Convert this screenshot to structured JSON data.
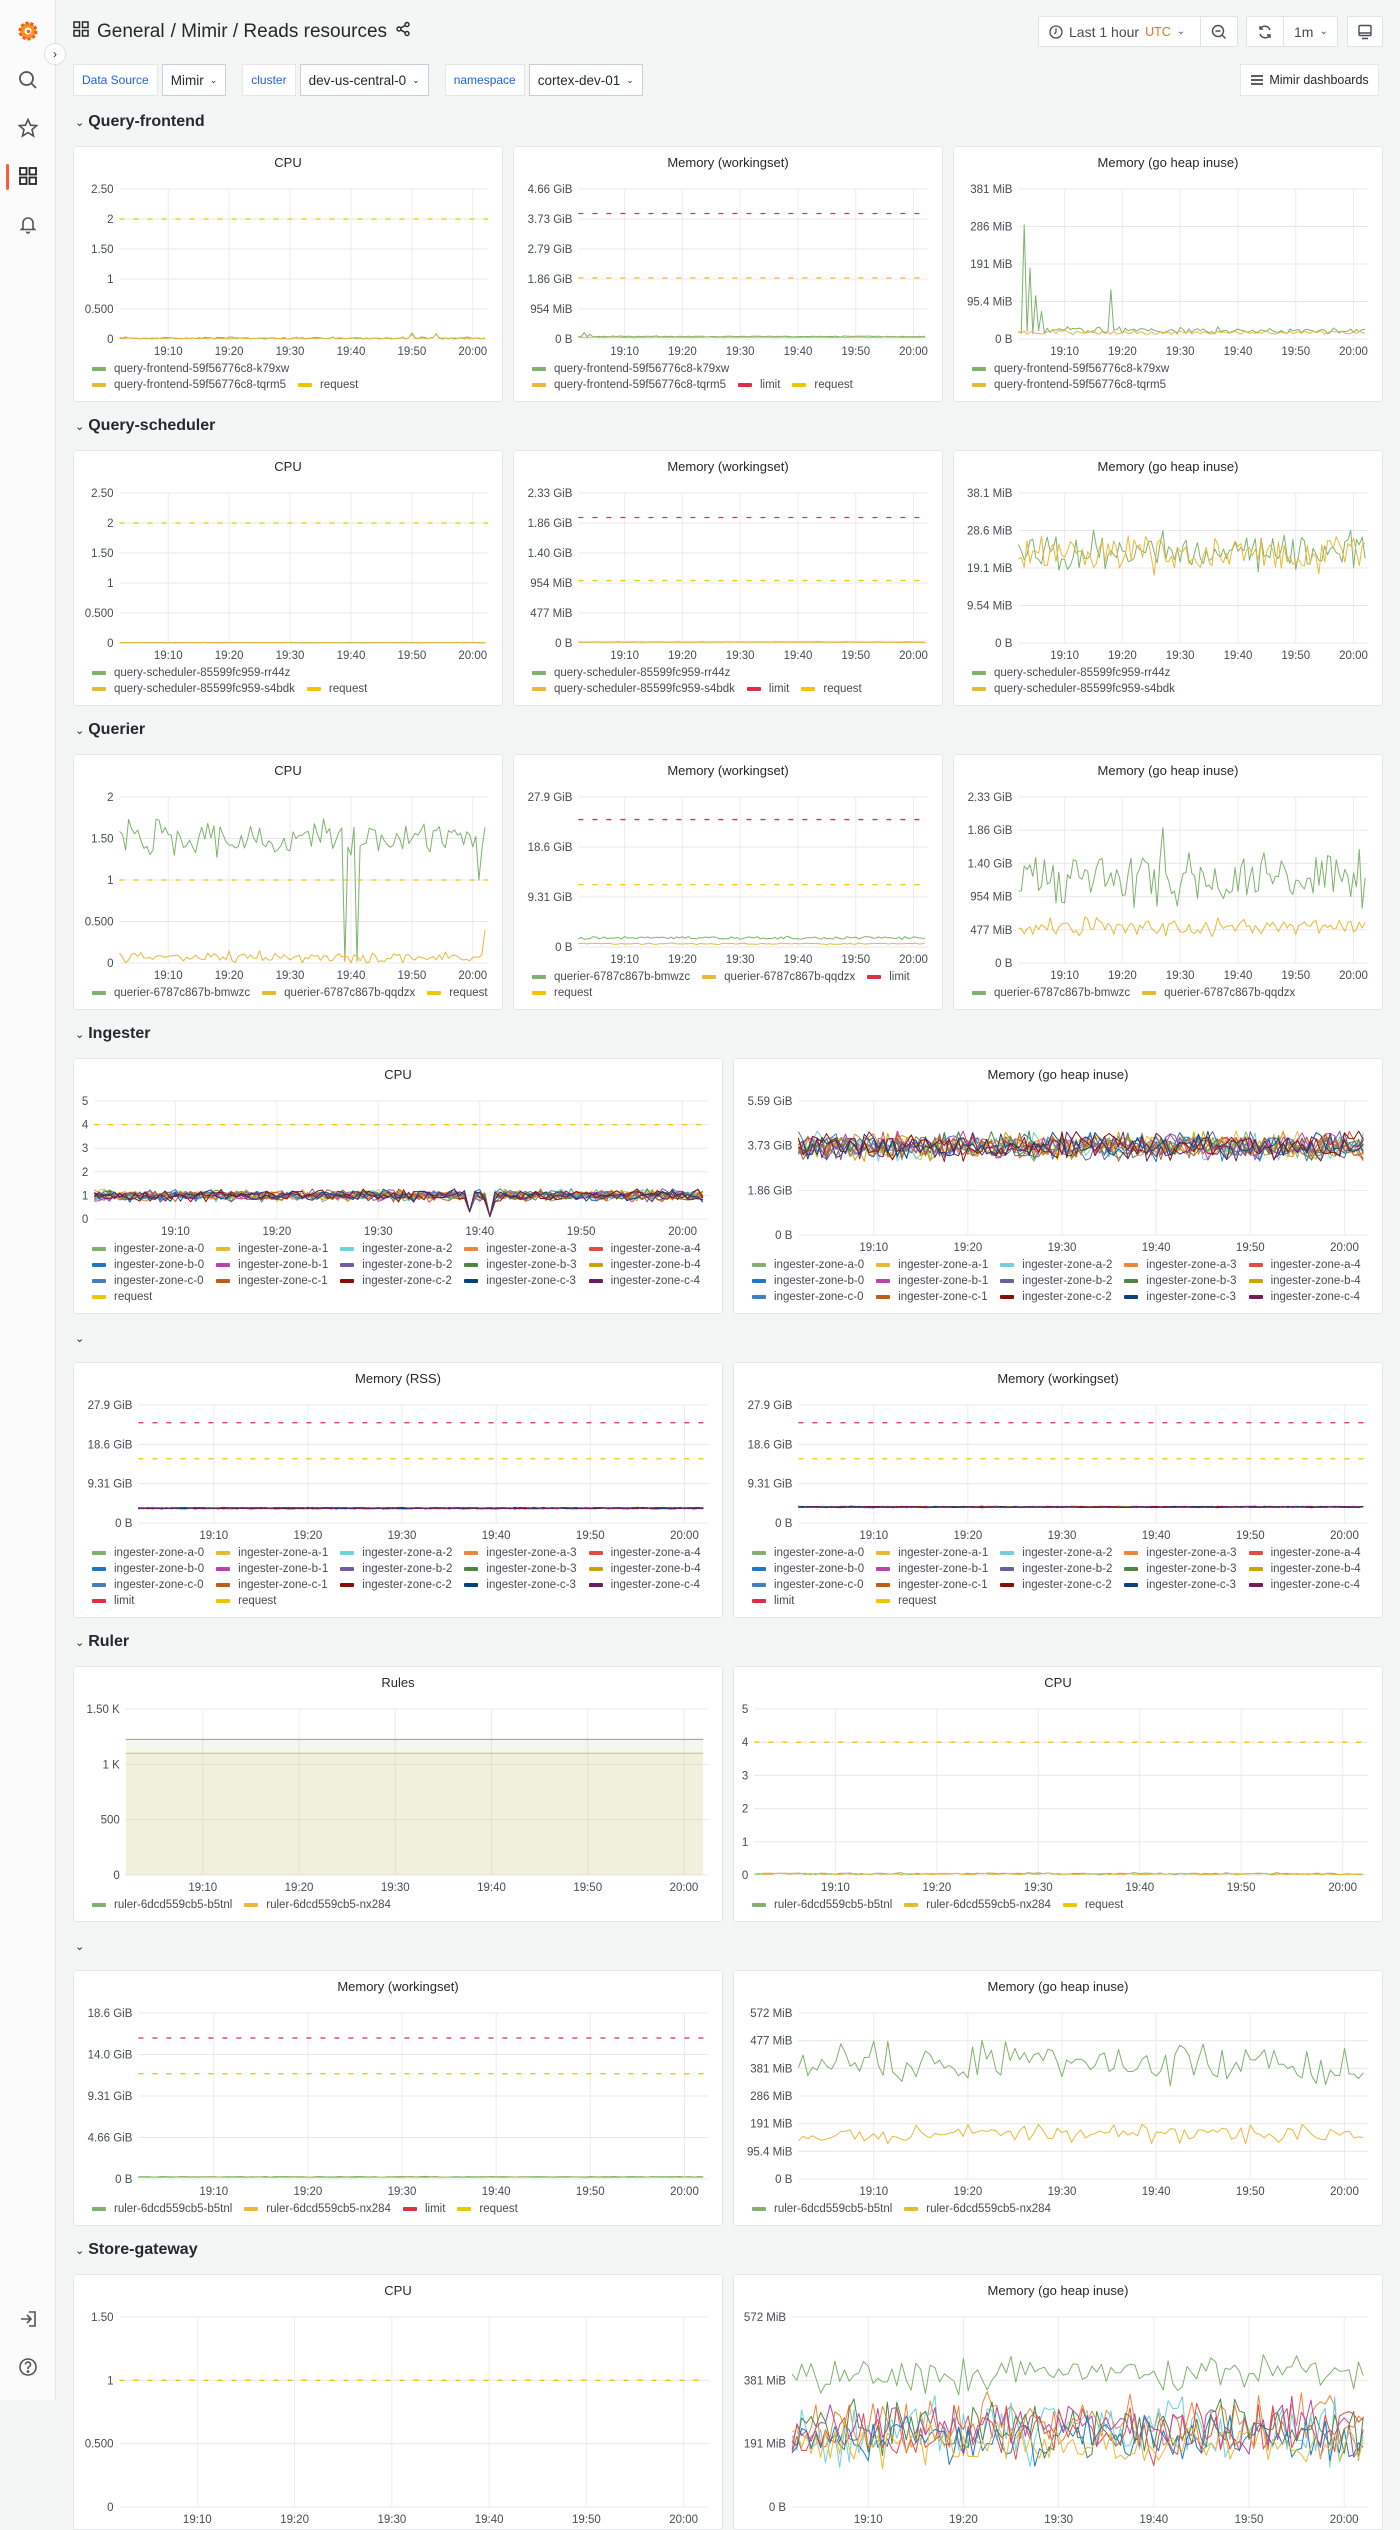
{
  "sidebar": {
    "top": [
      "grafana-logo",
      "search-icon",
      "star-icon",
      "dashboards-icon",
      "bell-icon"
    ],
    "bottom": [
      "sign-in-icon",
      "help-icon"
    ],
    "active": "dashboards-icon"
  },
  "header": {
    "breadcrumb_root": "General",
    "breadcrumb_path": "/ Mimir / Reads resources",
    "time_range": "Last 1 hour",
    "timezone": "UTC",
    "refresh_interval": "1m"
  },
  "variables": [
    {
      "label": "Data Source",
      "value": "Mimir"
    },
    {
      "label": "cluster",
      "value": "dev-us-central-0"
    },
    {
      "label": "namespace",
      "value": "cortex-dev-01"
    }
  ],
  "dashboards_link": "Mimir dashboards",
  "time_axis": {
    "start": "19:02",
    "end": "20:02",
    "ticks": [
      "19:10",
      "19:20",
      "19:30",
      "19:40",
      "19:50",
      "20:00"
    ]
  },
  "colors": {
    "limit": "#e02f44",
    "request": "#f5c400",
    "accent": "#ef6f1e",
    "link": "#1f62e0"
  },
  "sections": [
    {
      "title": "Query-frontend",
      "panels": [
        {
          "title": "CPU",
          "y_ticks": [
            "0",
            "0.500",
            "1",
            "1.50",
            "2",
            "2.50"
          ],
          "y_max": 2.5,
          "series": [
            {
              "name": "query-frontend-59f56776c8-k79xw",
              "color": "#7eb26d",
              "value": 0.015,
              "noise": 0.012,
              "spikes": [
                {
                  "t": "19:50",
                  "v": 0.1
                },
                {
                  "t": "19:54",
                  "v": 0.09
                }
              ]
            },
            {
              "name": "query-frontend-59f56776c8-tqrm5",
              "color": "#eab839",
              "value": 0.012,
              "noise": 0.01,
              "spikes": [
                {
                  "t": "19:50",
                  "v": 0.08
                },
                {
                  "t": "19:54",
                  "v": 0.08
                }
              ]
            }
          ],
          "thresholds": [
            {
              "name": "request",
              "color": "#f5c400",
              "value": 2
            }
          ]
        },
        {
          "title": "Memory (workingset)",
          "y_ticks": [
            "0 B",
            "954 MiB",
            "1.86 GiB",
            "2.79 GiB",
            "3.73 GiB",
            "4.66 GiB"
          ],
          "y_max": 4.66,
          "series": [
            {
              "name": "query-frontend-59f56776c8-k79xw",
              "color": "#7eb26d",
              "value": 0.08,
              "noise": 0.01,
              "spikes": [
                {
                  "t": "19:03",
                  "v": 0.2
                },
                {
                  "t": "19:04",
                  "v": 0.15
                }
              ]
            },
            {
              "name": "query-frontend-59f56776c8-tqrm5",
              "color": "#eab839",
              "value": 0.05,
              "noise": 0.005
            }
          ],
          "thresholds": [
            {
              "name": "limit",
              "color": "#e02f44",
              "value": 3.9
            },
            {
              "name": "request",
              "color": "#f5c400",
              "value": 1.9
            }
          ]
        },
        {
          "title": "Memory (go heap inuse)",
          "y_ticks": [
            "0 B",
            "95.4 MiB",
            "191 MiB",
            "286 MiB",
            "381 MiB"
          ],
          "y_max": 381,
          "series": [
            {
              "name": "query-frontend-59f56776c8-k79xw",
              "color": "#7eb26d",
              "value": 22,
              "noise": 6,
              "spikes": [
                {
                  "t": "19:03",
                  "v": 290
                },
                {
                  "t": "19:04",
                  "v": 180
                },
                {
                  "t": "19:05",
                  "v": 110
                },
                {
                  "t": "19:06",
                  "v": 70
                },
                {
                  "t": "19:18",
                  "v": 125
                }
              ]
            },
            {
              "name": "query-frontend-59f56776c8-tqrm5",
              "color": "#eab839",
              "value": 16,
              "noise": 4
            }
          ],
          "thresholds": []
        }
      ]
    },
    {
      "title": "Query-scheduler",
      "panels": [
        {
          "title": "CPU",
          "y_ticks": [
            "0",
            "0.500",
            "1",
            "1.50",
            "2",
            "2.50"
          ],
          "y_max": 2.5,
          "series": [
            {
              "name": "query-scheduler-85599fc959-rr44z",
              "color": "#7eb26d",
              "value": 0.006,
              "noise": 0.003
            },
            {
              "name": "query-scheduler-85599fc959-s4bdk",
              "color": "#eab839",
              "value": 0.005,
              "noise": 0.003
            }
          ],
          "thresholds": [
            {
              "name": "request",
              "color": "#f5c400",
              "value": 2
            }
          ]
        },
        {
          "title": "Memory (workingset)",
          "y_ticks": [
            "0 B",
            "477 MiB",
            "954 MiB",
            "1.40 GiB",
            "1.86 GiB",
            "2.33 GiB"
          ],
          "y_max": 2.33,
          "series": [
            {
              "name": "query-scheduler-85599fc959-rr44z",
              "color": "#7eb26d",
              "value": 0.015,
              "noise": 0.002
            },
            {
              "name": "query-scheduler-85599fc959-s4bdk",
              "color": "#eab839",
              "value": 0.012,
              "noise": 0.002
            }
          ],
          "thresholds": [
            {
              "name": "limit",
              "color": "#e02f44",
              "value": 1.95
            },
            {
              "name": "request",
              "color": "#f5c400",
              "value": 0.97
            }
          ]
        },
        {
          "title": "Memory (go heap inuse)",
          "y_ticks": [
            "0 B",
            "9.54 MiB",
            "19.1 MiB",
            "28.6 MiB",
            "38.1 MiB"
          ],
          "y_max": 38.1,
          "series": [
            {
              "name": "query-scheduler-85599fc959-rr44z",
              "color": "#7eb26d",
              "value": 23.5,
              "noise": 3.5
            },
            {
              "name": "query-scheduler-85599fc959-s4bdk",
              "color": "#eab839",
              "value": 22.5,
              "noise": 3.5
            }
          ],
          "thresholds": []
        }
      ]
    },
    {
      "title": "Querier",
      "panels": [
        {
          "title": "CPU",
          "y_ticks": [
            "0",
            "0.500",
            "1",
            "1.50",
            "2"
          ],
          "y_max": 2,
          "series": [
            {
              "name": "querier-6787c867b-bmwzc",
              "color": "#7eb26d",
              "value": 1.5,
              "noise": 0.15,
              "spikes": [
                {
                  "t": "19:39",
                  "v": 0.02
                },
                {
                  "t": "19:40",
                  "v": 1.3
                },
                {
                  "t": "19:41",
                  "v": 0.02
                },
                {
                  "t": "20:01",
                  "v": 1.0
                }
              ]
            },
            {
              "name": "querier-6787c867b-qqdzx",
              "color": "#eab839",
              "value": 0.07,
              "noise": 0.05,
              "spikes": [
                {
                  "t": "20:02",
                  "v": 0.4
                }
              ]
            }
          ],
          "thresholds": [
            {
              "name": "request",
              "color": "#f5c400",
              "value": 1
            }
          ]
        },
        {
          "title": "Memory (workingset)",
          "y_ticks": [
            "0 B",
            "9.31 GiB",
            "18.6 GiB",
            "27.9 GiB"
          ],
          "y_max": 27.9,
          "series": [
            {
              "name": "querier-6787c867b-bmwzc",
              "color": "#7eb26d",
              "value": 1.7,
              "noise": 0.2
            },
            {
              "name": "querier-6787c867b-qqdzx",
              "color": "#eab839",
              "value": 0.6,
              "noise": 0.1
            }
          ],
          "thresholds": [
            {
              "name": "limit",
              "color": "#e02f44",
              "value": 23.7
            },
            {
              "name": "request",
              "color": "#f5c400",
              "value": 11.6
            }
          ]
        },
        {
          "title": "Memory (go heap inuse)",
          "y_ticks": [
            "0 B",
            "477 MiB",
            "954 MiB",
            "1.40 GiB",
            "1.86 GiB",
            "2.33 GiB"
          ],
          "y_max": 2.33,
          "series": [
            {
              "name": "querier-6787c867b-bmwzc",
              "color": "#7eb26d",
              "value": 1.2,
              "noise": 0.28,
              "spikes": [
                {
                  "t": "19:27",
                  "v": 1.9
                }
              ]
            },
            {
              "name": "querier-6787c867b-qqdzx",
              "color": "#eab839",
              "value": 0.5,
              "noise": 0.1
            }
          ],
          "thresholds": []
        }
      ]
    },
    {
      "title": "Ingester",
      "grid_legend": true,
      "panels": [
        {
          "title": "CPU",
          "y_ticks": [
            "0",
            "1",
            "2",
            "3",
            "4",
            "5"
          ],
          "y_max": 5,
          "series_group": "ingesters",
          "series_value": 1.0,
          "series_noise": 0.18,
          "spikes": [
            {
              "t": "19:39",
              "v": 0.3
            },
            {
              "t": "19:41",
              "v": 0.1
            }
          ],
          "thresholds": [
            {
              "name": "request",
              "color": "#f5c400",
              "value": 4
            }
          ]
        },
        {
          "title": "Memory (go heap inuse)",
          "y_ticks": [
            "0 B",
            "1.86 GiB",
            "3.73 GiB",
            "5.59 GiB"
          ],
          "y_max": 5.59,
          "series_group": "ingesters",
          "series_value": 3.7,
          "series_noise": 0.4,
          "thresholds": []
        }
      ]
    },
    {
      "title": "",
      "grid_legend": true,
      "panels": [
        {
          "title": "Memory (RSS)",
          "y_ticks": [
            "0 B",
            "9.31 GiB",
            "18.6 GiB",
            "27.9 GiB"
          ],
          "y_max": 27.9,
          "series_group": "ingesters",
          "series_value": 3.5,
          "series_noise": 0.12,
          "thresholds": [
            {
              "name": "limit",
              "color": "#e02f44",
              "value": 23.7
            },
            {
              "name": "request",
              "color": "#f5c400",
              "value": 15.2
            }
          ]
        },
        {
          "title": "Memory (workingset)",
          "y_ticks": [
            "0 B",
            "9.31 GiB",
            "18.6 GiB",
            "27.9 GiB"
          ],
          "y_max": 27.9,
          "series_group": "ingesters",
          "series_value": 3.8,
          "series_noise": 0.12,
          "thresholds": [
            {
              "name": "limit",
              "color": "#e02f44",
              "value": 23.7
            },
            {
              "name": "request",
              "color": "#f5c400",
              "value": 15.2
            }
          ]
        }
      ]
    },
    {
      "title": "Ruler",
      "panels": [
        {
          "title": "Rules",
          "y_ticks": [
            "0",
            "500",
            "1 K",
            "1.50 K"
          ],
          "y_max": 1500,
          "fill": true,
          "series": [
            {
              "name": "ruler-6dcd559cb5-b5tnl",
              "color": "#7eb26d",
              "value": 1225,
              "noise": 0
            },
            {
              "name": "ruler-6dcd559cb5-nx284",
              "color": "#eab839",
              "value": 1100,
              "noise": 0
            }
          ],
          "thresholds": []
        },
        {
          "title": "CPU",
          "y_ticks": [
            "0",
            "1",
            "2",
            "3",
            "4",
            "5"
          ],
          "y_max": 5,
          "series": [
            {
              "name": "ruler-6dcd559cb5-b5tnl",
              "color": "#7eb26d",
              "value": 0.04,
              "noise": 0.02
            },
            {
              "name": "ruler-6dcd559cb5-nx284",
              "color": "#eab839",
              "value": 0.03,
              "noise": 0.02
            }
          ],
          "thresholds": [
            {
              "name": "request",
              "color": "#f5c400",
              "value": 4
            }
          ]
        }
      ]
    },
    {
      "title": "",
      "panels": [
        {
          "title": "Memory (workingset)",
          "y_ticks": [
            "0 B",
            "4.66 GiB",
            "9.31 GiB",
            "14.0 GiB",
            "18.6 GiB"
          ],
          "y_max": 18.6,
          "series": [
            {
              "name": "ruler-6dcd559cb5-b5tnl",
              "color": "#7eb26d",
              "value": 0.25,
              "noise": 0.03
            },
            {
              "name": "ruler-6dcd559cb5-nx284",
              "color": "#eab839",
              "value": 0.18,
              "noise": 0.02
            }
          ],
          "thresholds": [
            {
              "name": "limit",
              "color": "#e02f44",
              "value": 15.8
            },
            {
              "name": "request",
              "color": "#f5c400",
              "value": 11.8
            }
          ]
        },
        {
          "title": "Memory (go heap inuse)",
          "y_ticks": [
            "0 B",
            "95.4 MiB",
            "191 MiB",
            "286 MiB",
            "381 MiB",
            "477 MiB",
            "572 MiB"
          ],
          "y_max": 572,
          "series": [
            {
              "name": "ruler-6dcd559cb5-b5tnl",
              "color": "#7eb26d",
              "value": 400,
              "noise": 50
            },
            {
              "name": "ruler-6dcd559cb5-nx284",
              "color": "#eab839",
              "value": 155,
              "noise": 22
            }
          ],
          "thresholds": []
        }
      ]
    },
    {
      "title": "Store-gateway",
      "panels": [
        {
          "title": "CPU",
          "y_ticks": [
            "0",
            "0.500",
            "1",
            "1.50"
          ],
          "y_max": 1.5,
          "series": [],
          "thresholds": [
            {
              "color": "#f5c400",
              "value": 1
            }
          ]
        },
        {
          "title": "Memory (go heap inuse)",
          "y_ticks": [
            "0 B",
            "191 MiB",
            "381 MiB",
            "572 MiB"
          ],
          "y_max": 572,
          "series": [
            {
              "color": "#7eb26d",
              "value": 400,
              "noise": 40
            },
            {
              "color": "#ef843c",
              "value": 250,
              "noise": 70
            },
            {
              "color": "#6ed0e0",
              "value": 230,
              "noise": 70
            },
            {
              "color": "#ba43a9",
              "value": 240,
              "noise": 60
            },
            {
              "color": "#508642",
              "value": 230,
              "noise": 60
            },
            {
              "color": "#e24d42",
              "value": 220,
              "noise": 60
            },
            {
              "color": "#1f78c1",
              "value": 200,
              "noise": 50
            },
            {
              "color": "#eab839",
              "value": 190,
              "noise": 50
            }
          ],
          "thresholds": []
        }
      ]
    }
  ],
  "ingesters": [
    {
      "name": "ingester-zone-a-0",
      "color": "#7eb26d"
    },
    {
      "name": "ingester-zone-a-1",
      "color": "#eab839"
    },
    {
      "name": "ingester-zone-a-2",
      "color": "#6ed0e0"
    },
    {
      "name": "ingester-zone-a-3",
      "color": "#ef843c"
    },
    {
      "name": "ingester-zone-a-4",
      "color": "#e24d42"
    },
    {
      "name": "ingester-zone-b-0",
      "color": "#1f78c1"
    },
    {
      "name": "ingester-zone-b-1",
      "color": "#ba43a9"
    },
    {
      "name": "ingester-zone-b-2",
      "color": "#705da0"
    },
    {
      "name": "ingester-zone-b-3",
      "color": "#508642"
    },
    {
      "name": "ingester-zone-b-4",
      "color": "#cca300"
    },
    {
      "name": "ingester-zone-c-0",
      "color": "#447ebc"
    },
    {
      "name": "ingester-zone-c-1",
      "color": "#c15c17"
    },
    {
      "name": "ingester-zone-c-2",
      "color": "#890f02"
    },
    {
      "name": "ingester-zone-c-3",
      "color": "#0a437c"
    },
    {
      "name": "ingester-zone-c-4",
      "color": "#6d1f62"
    }
  ]
}
